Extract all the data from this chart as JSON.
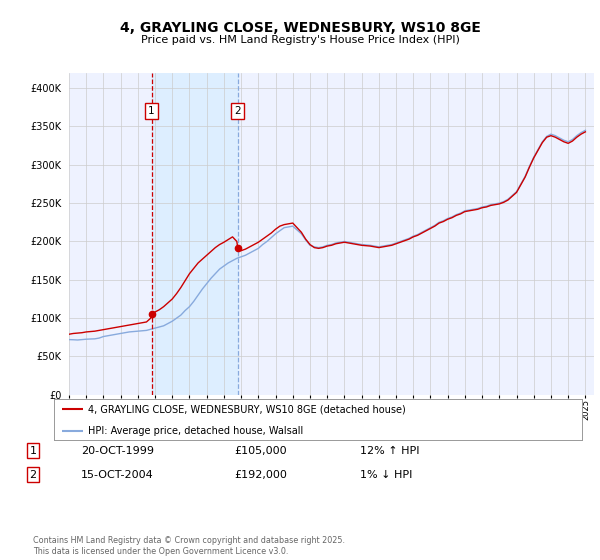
{
  "title": "4, GRAYLING CLOSE, WEDNESBURY, WS10 8GE",
  "subtitle": "Price paid vs. HM Land Registry's House Price Index (HPI)",
  "property_label": "4, GRAYLING CLOSE, WEDNESBURY, WS10 8GE (detached house)",
  "hpi_label": "HPI: Average price, detached house, Walsall",
  "property_color": "#cc0000",
  "hpi_color": "#88aadd",
  "vline1_color": "#cc0000",
  "vline2_color": "#88aadd",
  "span_color": "#ddeeff",
  "background_color": "#ffffff",
  "plot_bg_color": "#eef2ff",
  "grid_color": "#cccccc",
  "sale1_date": "20-OCT-1999",
  "sale1_price": 105000,
  "sale1_price_str": "£105,000",
  "sale1_hpi_pct": "12% ↑ HPI",
  "sale2_date": "15-OCT-2004",
  "sale2_price": 192000,
  "sale2_price_str": "£192,000",
  "sale2_hpi_pct": "1% ↓ HPI",
  "sale1_year": 1999.8,
  "sale2_year": 2004.8,
  "ylim": [
    0,
    420000
  ],
  "yticks": [
    0,
    50000,
    100000,
    150000,
    200000,
    250000,
    300000,
    350000,
    400000
  ],
  "ytick_labels": [
    "£0",
    "£50K",
    "£100K",
    "£150K",
    "£200K",
    "£250K",
    "£300K",
    "£350K",
    "£400K"
  ],
  "xlim_start": 1995.0,
  "xlim_end": 2025.5,
  "footer": "Contains HM Land Registry data © Crown copyright and database right 2025.\nThis data is licensed under the Open Government Licence v3.0.",
  "hpi_data": [
    [
      1995.0,
      72000
    ],
    [
      1995.25,
      71800
    ],
    [
      1995.5,
      71500
    ],
    [
      1995.75,
      72000
    ],
    [
      1996.0,
      72500
    ],
    [
      1996.25,
      72800
    ],
    [
      1996.5,
      73000
    ],
    [
      1996.75,
      74000
    ],
    [
      1997.0,
      76000
    ],
    [
      1997.25,
      77000
    ],
    [
      1997.5,
      78000
    ],
    [
      1997.75,
      79000
    ],
    [
      1998.0,
      80000
    ],
    [
      1998.25,
      81000
    ],
    [
      1998.5,
      82000
    ],
    [
      1998.75,
      82500
    ],
    [
      1999.0,
      83000
    ],
    [
      1999.25,
      83500
    ],
    [
      1999.5,
      84000
    ],
    [
      1999.75,
      85500
    ],
    [
      2000.0,
      87000
    ],
    [
      2000.25,
      88500
    ],
    [
      2000.5,
      90000
    ],
    [
      2000.75,
      93000
    ],
    [
      2001.0,
      96000
    ],
    [
      2001.25,
      100000
    ],
    [
      2001.5,
      104000
    ],
    [
      2001.75,
      110000
    ],
    [
      2002.0,
      115000
    ],
    [
      2002.25,
      122000
    ],
    [
      2002.5,
      130000
    ],
    [
      2002.75,
      138000
    ],
    [
      2003.0,
      145000
    ],
    [
      2003.25,
      152000
    ],
    [
      2003.5,
      158000
    ],
    [
      2003.75,
      164000
    ],
    [
      2004.0,
      168000
    ],
    [
      2004.25,
      172000
    ],
    [
      2004.5,
      175000
    ],
    [
      2004.75,
      178000
    ],
    [
      2005.0,
      180000
    ],
    [
      2005.25,
      182000
    ],
    [
      2005.5,
      185000
    ],
    [
      2005.75,
      188000
    ],
    [
      2006.0,
      191000
    ],
    [
      2006.25,
      196000
    ],
    [
      2006.5,
      200000
    ],
    [
      2006.75,
      205000
    ],
    [
      2007.0,
      210000
    ],
    [
      2007.25,
      214000
    ],
    [
      2007.5,
      218000
    ],
    [
      2007.75,
      219000
    ],
    [
      2008.0,
      220000
    ],
    [
      2008.25,
      215000
    ],
    [
      2008.5,
      210000
    ],
    [
      2008.75,
      202000
    ],
    [
      2009.0,
      195000
    ],
    [
      2009.25,
      193000
    ],
    [
      2009.5,
      192000
    ],
    [
      2009.75,
      193000
    ],
    [
      2010.0,
      195000
    ],
    [
      2010.25,
      196000
    ],
    [
      2010.5,
      198000
    ],
    [
      2010.75,
      199000
    ],
    [
      2011.0,
      200000
    ],
    [
      2011.25,
      199000
    ],
    [
      2011.5,
      198000
    ],
    [
      2011.75,
      197000
    ],
    [
      2012.0,
      196000
    ],
    [
      2012.25,
      195500
    ],
    [
      2012.5,
      195000
    ],
    [
      2012.75,
      194000
    ],
    [
      2013.0,
      193000
    ],
    [
      2013.25,
      194000
    ],
    [
      2013.5,
      195000
    ],
    [
      2013.75,
      196000
    ],
    [
      2014.0,
      198000
    ],
    [
      2014.25,
      200000
    ],
    [
      2014.5,
      202000
    ],
    [
      2014.75,
      204000
    ],
    [
      2015.0,
      207000
    ],
    [
      2015.25,
      209000
    ],
    [
      2015.5,
      212000
    ],
    [
      2015.75,
      215000
    ],
    [
      2016.0,
      218000
    ],
    [
      2016.25,
      221000
    ],
    [
      2016.5,
      225000
    ],
    [
      2016.75,
      227000
    ],
    [
      2017.0,
      230000
    ],
    [
      2017.25,
      232000
    ],
    [
      2017.5,
      235000
    ],
    [
      2017.75,
      237000
    ],
    [
      2018.0,
      240000
    ],
    [
      2018.25,
      241000
    ],
    [
      2018.5,
      242000
    ],
    [
      2018.75,
      243000
    ],
    [
      2019.0,
      245000
    ],
    [
      2019.25,
      246000
    ],
    [
      2019.5,
      248000
    ],
    [
      2019.75,
      249000
    ],
    [
      2020.0,
      250000
    ],
    [
      2020.25,
      252000
    ],
    [
      2020.5,
      255000
    ],
    [
      2020.75,
      260000
    ],
    [
      2021.0,
      265000
    ],
    [
      2021.25,
      275000
    ],
    [
      2021.5,
      285000
    ],
    [
      2021.75,
      298000
    ],
    [
      2022.0,
      310000
    ],
    [
      2022.25,
      320000
    ],
    [
      2022.5,
      330000
    ],
    [
      2022.75,
      337000
    ],
    [
      2023.0,
      340000
    ],
    [
      2023.25,
      338000
    ],
    [
      2023.5,
      335000
    ],
    [
      2023.75,
      332000
    ],
    [
      2024.0,
      330000
    ],
    [
      2024.25,
      333000
    ],
    [
      2024.5,
      338000
    ],
    [
      2024.75,
      342000
    ],
    [
      2025.0,
      345000
    ]
  ],
  "property_data": [
    [
      1995.0,
      79000
    ],
    [
      1995.25,
      80000
    ],
    [
      1995.5,
      80500
    ],
    [
      1995.75,
      81000
    ],
    [
      1996.0,
      82000
    ],
    [
      1996.25,
      82500
    ],
    [
      1996.5,
      83000
    ],
    [
      1996.75,
      84000
    ],
    [
      1997.0,
      85000
    ],
    [
      1997.25,
      86000
    ],
    [
      1997.5,
      87000
    ],
    [
      1997.75,
      88000
    ],
    [
      1998.0,
      89000
    ],
    [
      1998.25,
      90000
    ],
    [
      1998.5,
      91000
    ],
    [
      1998.75,
      92000
    ],
    [
      1999.0,
      93000
    ],
    [
      1999.25,
      94000
    ],
    [
      1999.5,
      95000
    ],
    [
      1999.75,
      100000
    ],
    [
      1999.8,
      105000
    ],
    [
      2000.0,
      108000
    ],
    [
      2000.25,
      111000
    ],
    [
      2000.5,
      115000
    ],
    [
      2000.75,
      120000
    ],
    [
      2001.0,
      125000
    ],
    [
      2001.25,
      132000
    ],
    [
      2001.5,
      140000
    ],
    [
      2001.75,
      149000
    ],
    [
      2002.0,
      158000
    ],
    [
      2002.25,
      165000
    ],
    [
      2002.5,
      172000
    ],
    [
      2002.75,
      177000
    ],
    [
      2003.0,
      182000
    ],
    [
      2003.25,
      187000
    ],
    [
      2003.5,
      192000
    ],
    [
      2003.75,
      196000
    ],
    [
      2004.0,
      199000
    ],
    [
      2004.5,
      206000
    ],
    [
      2004.75,
      200000
    ],
    [
      2004.8,
      192000
    ],
    [
      2005.0,
      188000
    ],
    [
      2005.25,
      190000
    ],
    [
      2005.5,
      193000
    ],
    [
      2005.75,
      196000
    ],
    [
      2006.0,
      199000
    ],
    [
      2006.25,
      203000
    ],
    [
      2006.5,
      207000
    ],
    [
      2006.75,
      211000
    ],
    [
      2007.0,
      216000
    ],
    [
      2007.25,
      220000
    ],
    [
      2007.5,
      222000
    ],
    [
      2007.75,
      223000
    ],
    [
      2008.0,
      224000
    ],
    [
      2008.25,
      218000
    ],
    [
      2008.5,
      212000
    ],
    [
      2008.75,
      203000
    ],
    [
      2009.0,
      196000
    ],
    [
      2009.25,
      192000
    ],
    [
      2009.5,
      191000
    ],
    [
      2009.75,
      192000
    ],
    [
      2010.0,
      194000
    ],
    [
      2010.25,
      195000
    ],
    [
      2010.5,
      197000
    ],
    [
      2010.75,
      198000
    ],
    [
      2011.0,
      199000
    ],
    [
      2011.25,
      198000
    ],
    [
      2011.5,
      197000
    ],
    [
      2011.75,
      196000
    ],
    [
      2012.0,
      195000
    ],
    [
      2012.25,
      194500
    ],
    [
      2012.5,
      194000
    ],
    [
      2012.75,
      193000
    ],
    [
      2013.0,
      192000
    ],
    [
      2013.25,
      193000
    ],
    [
      2013.5,
      194000
    ],
    [
      2013.75,
      195000
    ],
    [
      2014.0,
      197000
    ],
    [
      2014.25,
      199000
    ],
    [
      2014.5,
      201000
    ],
    [
      2014.75,
      203000
    ],
    [
      2015.0,
      206000
    ],
    [
      2015.25,
      208000
    ],
    [
      2015.5,
      211000
    ],
    [
      2015.75,
      214000
    ],
    [
      2016.0,
      217000
    ],
    [
      2016.25,
      220000
    ],
    [
      2016.5,
      224000
    ],
    [
      2016.75,
      226000
    ],
    [
      2017.0,
      229000
    ],
    [
      2017.25,
      231000
    ],
    [
      2017.5,
      234000
    ],
    [
      2017.75,
      236000
    ],
    [
      2018.0,
      239000
    ],
    [
      2018.25,
      240000
    ],
    [
      2018.5,
      241000
    ],
    [
      2018.75,
      242000
    ],
    [
      2019.0,
      244000
    ],
    [
      2019.25,
      245000
    ],
    [
      2019.5,
      247000
    ],
    [
      2019.75,
      248000
    ],
    [
      2020.0,
      249000
    ],
    [
      2020.25,
      251000
    ],
    [
      2020.5,
      254000
    ],
    [
      2020.75,
      259000
    ],
    [
      2021.0,
      264000
    ],
    [
      2021.25,
      274000
    ],
    [
      2021.5,
      284000
    ],
    [
      2021.75,
      297000
    ],
    [
      2022.0,
      309000
    ],
    [
      2022.25,
      319000
    ],
    [
      2022.5,
      329000
    ],
    [
      2022.75,
      336000
    ],
    [
      2023.0,
      338000
    ],
    [
      2023.25,
      336000
    ],
    [
      2023.5,
      333000
    ],
    [
      2023.75,
      330000
    ],
    [
      2024.0,
      328000
    ],
    [
      2024.25,
      331000
    ],
    [
      2024.5,
      336000
    ],
    [
      2024.75,
      340000
    ],
    [
      2025.0,
      343000
    ]
  ]
}
